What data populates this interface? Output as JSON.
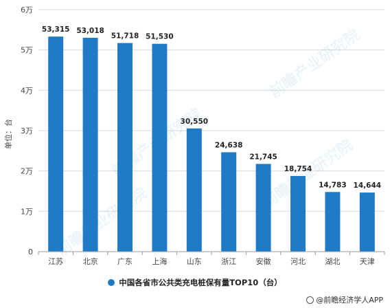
{
  "chart_data": {
    "type": "bar",
    "ylabel": "单位：台",
    "ylim": [
      0,
      60000
    ],
    "yticks": [
      0,
      10000,
      20000,
      30000,
      40000,
      50000,
      60000
    ],
    "ytick_labels": [
      "0",
      "1万",
      "2万",
      "3万",
      "4万",
      "5万",
      "6万"
    ],
    "categories": [
      "江苏",
      "北京",
      "广东",
      "上海",
      "山东",
      "浙江",
      "安徽",
      "河北",
      "湖北",
      "天津"
    ],
    "series": [
      {
        "name": "中国各省市公共类充电桩保有量TOP10（台）",
        "values": [
          53315,
          53018,
          51718,
          51530,
          30550,
          24638,
          21745,
          18754,
          14783,
          14644
        ],
        "labels": [
          "53,315",
          "53,018",
          "51,718",
          "51,530",
          "30,550",
          "24,638",
          "21,745",
          "18,754",
          "14,783",
          "14,644"
        ]
      }
    ],
    "grid": true,
    "legend_position": "bottom",
    "colors": {
      "bar": "#1f7bc6",
      "grid": "#d9d9d9",
      "axis": "#999999"
    }
  },
  "watermarks": [
    "前瞻产业研究院",
    "前瞻产业研究院",
    "前瞻产业研究院",
    "前瞻产业研究院"
  ],
  "credit": "@前瞻经济学人APP"
}
